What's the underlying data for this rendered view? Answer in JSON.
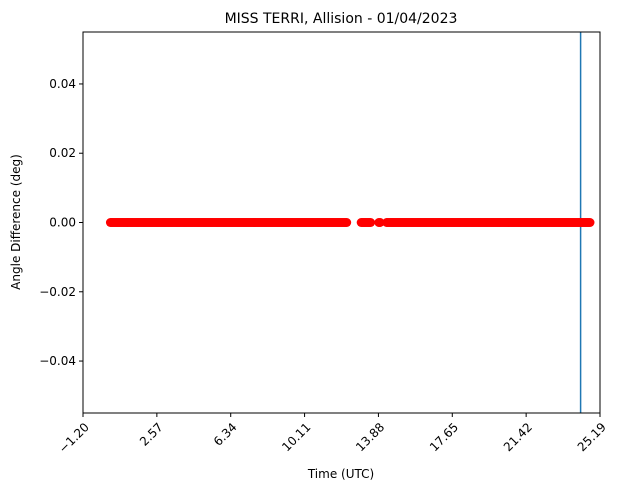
{
  "chart_data": {
    "type": "scatter",
    "title": "MISS TERRI, Allision - 01/04/2023",
    "xlabel": "Time (UTC)",
    "ylabel": "Angle Difference (deg)",
    "xlim": [
      -1.2,
      25.19
    ],
    "ylim": [
      -0.055,
      0.055
    ],
    "x_ticks": [
      -1.2,
      2.57,
      6.34,
      10.11,
      13.88,
      17.65,
      21.42,
      25.19
    ],
    "x_tick_labels": [
      "−1.20",
      "2.57",
      "6.34",
      "10.11",
      "13.88",
      "17.65",
      "21.42",
      "25.19"
    ],
    "y_ticks": [
      0.04,
      0.02,
      0.0,
      -0.02,
      -0.04
    ],
    "y_tick_labels": [
      "0.04",
      "0.02",
      "0.00",
      "−0.02",
      "−0.04"
    ],
    "series_segments": [
      [
        0.2,
        12.3
      ],
      [
        13.0,
        13.5
      ],
      [
        13.9,
        14.0
      ],
      [
        14.3,
        24.7
      ]
    ],
    "y_value": 0.0,
    "marker_color": "#ff0000",
    "vline_x": 24.2,
    "vline_color": "#1f77b4",
    "grid": false
  }
}
